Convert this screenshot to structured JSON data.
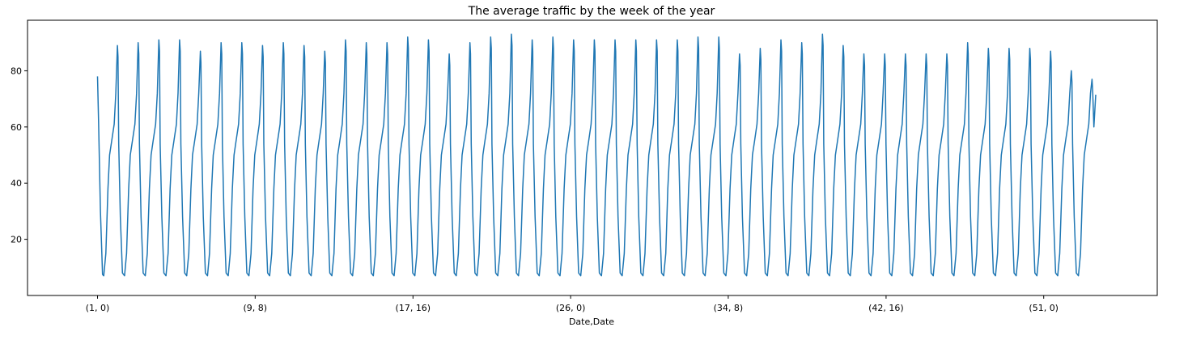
{
  "chart_data": {
    "type": "line",
    "title": "The average traffic by the week of the year",
    "xlabel": "Date,Date",
    "ylabel": "",
    "grid": false,
    "legend": "none",
    "x_unit": "(week, hour)",
    "xlim": [
      -3.7,
      56.0
    ],
    "ylim": [
      0,
      98
    ],
    "xticks": [
      {
        "x": 0,
        "label": "(1, 0)"
      },
      {
        "x": 8.33,
        "label": "(9, 8)"
      },
      {
        "x": 16.67,
        "label": "(17, 16)"
      },
      {
        "x": 25,
        "label": "(26, 0)"
      },
      {
        "x": 33.33,
        "label": "(34, 8)"
      },
      {
        "x": 41.67,
        "label": "(42, 16)"
      },
      {
        "x": 50,
        "label": "(51, 0)"
      }
    ],
    "yticks": [
      20,
      40,
      60,
      80
    ],
    "series": [
      {
        "color": "#1f77b4",
        "start": 0,
        "start_value": 78,
        "end": 52.75,
        "end_value": 71.5,
        "daily_minimum": 7,
        "daily_peaks": [
          89,
          90,
          91,
          91,
          87,
          90,
          90,
          89,
          90,
          89,
          87,
          91,
          90,
          90,
          92,
          91,
          86,
          90,
          92,
          93,
          91,
          92,
          91,
          91,
          91,
          91,
          91,
          91,
          92,
          92,
          86,
          88,
          91,
          90,
          93,
          89,
          86,
          86,
          86,
          86,
          86,
          90,
          88,
          88,
          88,
          87,
          80,
          77
        ]
      }
    ]
  }
}
